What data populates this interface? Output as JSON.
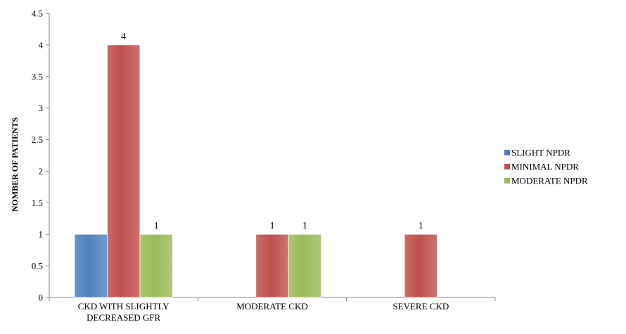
{
  "chart_data": {
    "type": "bar",
    "title": "",
    "xlabel": "",
    "ylabel": "NOMBER OF PATIENTS",
    "ylim": [
      0,
      4.5
    ],
    "y_ticks": [
      0,
      0.5,
      1,
      1.5,
      2,
      2.5,
      3,
      3.5,
      4,
      4.5
    ],
    "y_tick_labels": [
      "0",
      "0.5",
      "1",
      "1.5",
      "2",
      "2.5",
      "3",
      "3.5",
      "4",
      "4.5"
    ],
    "categories": [
      [
        "CKD WITH SLIGHTLY",
        "DECREASED GFR"
      ],
      [
        "MODERATE CKD"
      ],
      [
        "SEVERE CKD"
      ]
    ],
    "series": [
      {
        "name": "SLIGHT NPDR",
        "color": "#4F81BD",
        "values": [
          1,
          null,
          null
        ],
        "labels": [
          "",
          "",
          ""
        ]
      },
      {
        "name": "MINIMAL NPDR",
        "color": "#C0504D",
        "values": [
          4,
          1,
          1
        ],
        "labels": [
          "4",
          "1",
          "1"
        ]
      },
      {
        "name": "MODERATE NPDR",
        "color": "#9BBB59",
        "values": [
          1,
          1,
          null
        ],
        "labels": [
          "1",
          "1",
          ""
        ]
      }
    ],
    "grid": false,
    "legend_position": "right"
  }
}
